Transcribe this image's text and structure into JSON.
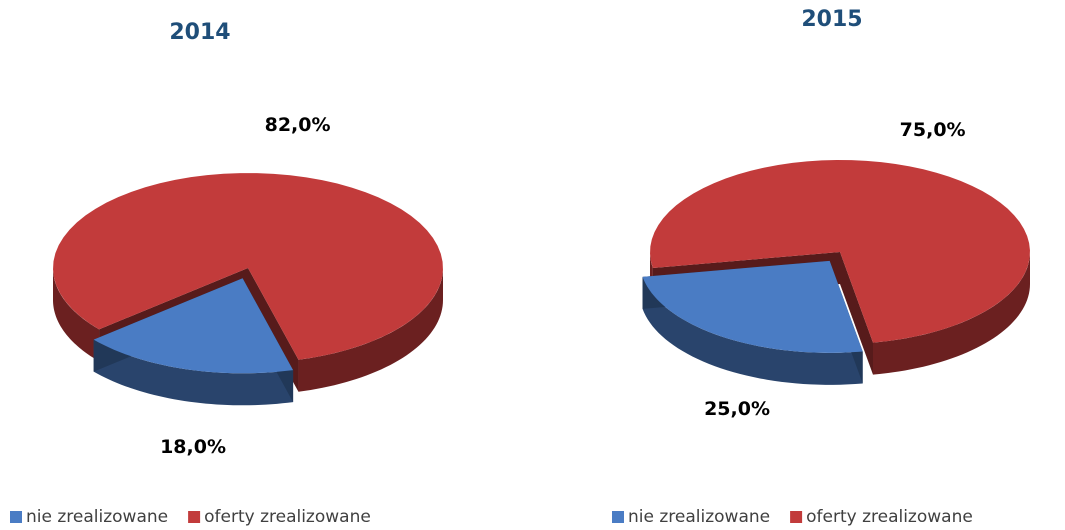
{
  "chart_data": [
    {
      "type": "pie",
      "title": "2014",
      "categories": [
        "nie zrealizowane",
        "oferty zrealizowane"
      ],
      "values": [
        18,
        82
      ],
      "value_labels": [
        "18,0%",
        "82,0%"
      ],
      "colors": [
        "#4a7cc4",
        "#c23b3b"
      ]
    },
    {
      "type": "pie",
      "title": "2015",
      "categories": [
        "nie zrealizowane",
        "oferty zrealizowane"
      ],
      "values": [
        25,
        75
      ],
      "value_labels": [
        "25,0%",
        "75,0%"
      ],
      "colors": [
        "#4a7cc4",
        "#c23b3b"
      ]
    }
  ]
}
